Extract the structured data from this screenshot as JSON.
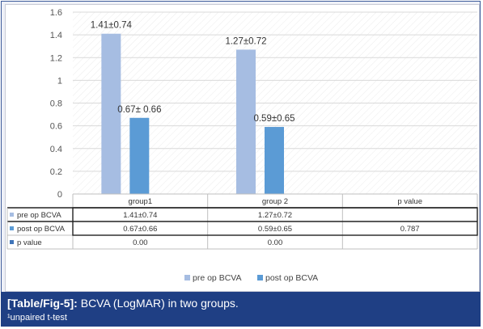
{
  "colors": {
    "pre_op": "#a6bde2",
    "post_op": "#5b9bd5",
    "p_value": "#3f74b8",
    "caption_bg": "#1f3f84"
  },
  "chart_data": {
    "type": "bar",
    "categories": [
      "group1",
      "group 2",
      "p value"
    ],
    "series": [
      {
        "name": "pre op BCVA",
        "values": [
          1.41,
          1.27,
          null
        ],
        "labels": [
          "1.41±0.74",
          "1.27±0.72",
          ""
        ]
      },
      {
        "name": "post op BCVA",
        "values": [
          0.67,
          0.59,
          null
        ],
        "labels": [
          "0.67± 0.66",
          "0.59±0.65",
          ""
        ]
      }
    ],
    "ylim": [
      0,
      1.6
    ],
    "yticks": [
      "0",
      "0.2",
      "0.4",
      "0.6",
      "0.8",
      "1",
      "1.2",
      "1.4",
      "1.6"
    ],
    "grid": true,
    "legend_position": "bottom",
    "data_table": {
      "columns": [
        "group1",
        "group 2",
        "p value"
      ],
      "rows": [
        {
          "series": "pre op BCVA",
          "cells": [
            "1.41±0.74",
            "1.27±0.72",
            ""
          ]
        },
        {
          "series": "post op BCVA",
          "cells": [
            "0.67±0.66",
            "0.59±0.65",
            "0.787"
          ]
        },
        {
          "series": "p value",
          "cells": [
            "0.00",
            "0.00",
            ""
          ]
        }
      ]
    },
    "legend": [
      "pre op BCVA",
      "post op BCVA"
    ]
  },
  "caption": {
    "tag": "[Table/Fig-5]:",
    "text": "BCVA (LogMAR) in two groups.",
    "note": "¹unpaired t-test"
  }
}
